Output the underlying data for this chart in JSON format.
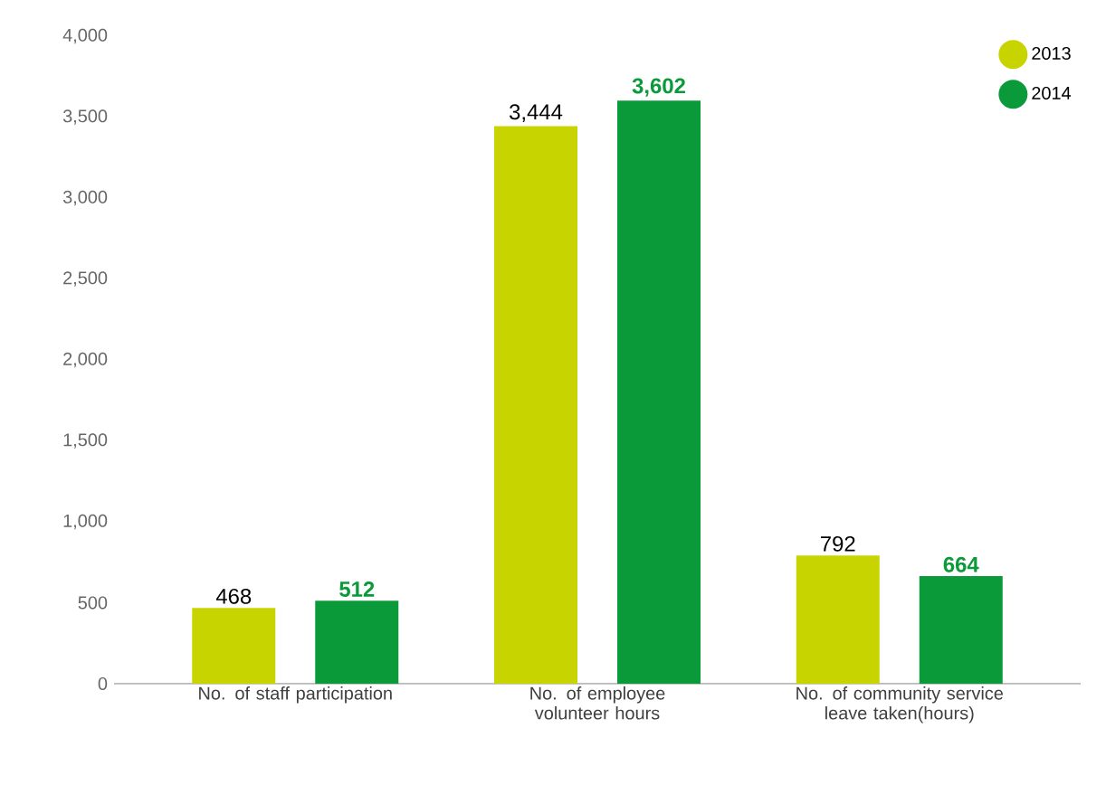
{
  "chart_data": {
    "type": "bar",
    "categories": [
      "No. of staff participation",
      "No. of employee volunteer hours",
      "No. of community service leave taken(hours)"
    ],
    "series": [
      {
        "name": "2013",
        "color": "#c8d400",
        "values": [
          468,
          3444,
          792
        ],
        "value_labels": [
          "468",
          "3,444",
          "792"
        ]
      },
      {
        "name": "2014",
        "color": "#0a9a3a",
        "values": [
          512,
          3602,
          664
        ],
        "value_labels": [
          "512",
          "3,602",
          "664"
        ]
      }
    ],
    "ylim": [
      0,
      4000
    ],
    "yticks": [
      0,
      {
        "value": 500,
        "label": "500"
      },
      {
        "value": 1000,
        "label": "1,000"
      },
      {
        "value": 1500,
        "label": "1,500"
      },
      {
        "value": 2000,
        "label": "2,000"
      },
      {
        "value": 2500,
        "label": "2,500"
      },
      {
        "value": 3000,
        "label": "3,000"
      },
      {
        "value": 3500,
        "label": "3,500"
      },
      {
        "value": 4000,
        "label": "4,000"
      }
    ],
    "legend": "top right",
    "grid": false
  }
}
